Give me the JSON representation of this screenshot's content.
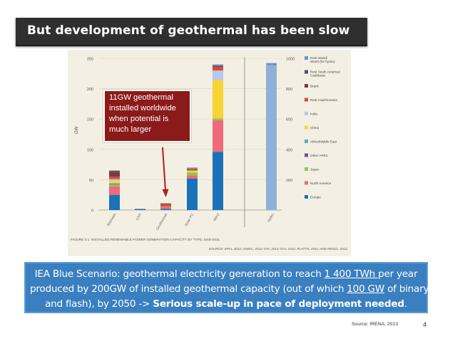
{
  "slide": {
    "title": "But development of geothermal has been slow",
    "callout": [
      "11GW geothermal",
      "installed worldwide",
      "when potential is",
      "much larger"
    ],
    "blue_box": {
      "l1_a": "IEA Blue Scenario: geothermal electricity generation to reach ",
      "l1_b": "1 400 TWh ",
      "l1_c": "per year",
      "l2_a": "produced by 200GW of installed geothermal capacity (out of which ",
      "l2_b": "100 GW",
      "l2_c": " of binary",
      "l3_a": "and flash), by 2050 -> ",
      "l3_b": "Serious scale-up in pace of deployment needed",
      "l3_c": "."
    },
    "source": "Source: IRENA, 2013",
    "page_number": "4"
  },
  "chart_data": {
    "type": "bar",
    "stacked": true,
    "categories": [
      "Biomass",
      "CSP",
      "Geothermal",
      "Solar PV",
      "Wind",
      "Hydro"
    ],
    "ylabel": "GW",
    "ylim_left": [
      0,
      250
    ],
    "yticks_left": [
      "0",
      "50",
      "100",
      "150",
      "200",
      "250"
    ],
    "ylim_right": [
      0,
      1000
    ],
    "yticks_right": [
      "200",
      "400",
      "600",
      "800",
      "1000"
    ],
    "hydro_label": "970 GW",
    "caption": "FIGURE 3.1: INSTALLED RENEWABLE POWER GENERATION CAPACITY BY TYPE, END-2011",
    "source_line": "SOURCE: EPIA, 2012; GWEC, 2012; IHA, 2012; IGA, 2012; PLATTS, 2011; AND REN21, 2012.",
    "legend": [
      {
        "label": "Rest World/ World (for hydro)",
        "color": "#5b9bd5"
      },
      {
        "label": "Rest South America/ Caribbean",
        "color": "#4d5566"
      },
      {
        "label": "Brazil",
        "color": "#7b3b3b"
      },
      {
        "label": "Rest Asia/Oceania",
        "color": "#d94a3a"
      },
      {
        "label": "India",
        "color": "#b7c8e8"
      },
      {
        "label": "China",
        "color": "#f8d432"
      },
      {
        "label": "Africa/Middle East",
        "color": "#4fb3c4"
      },
      {
        "label": "Other APEC",
        "color": "#7d4f9e"
      },
      {
        "label": "Japan",
        "color": "#8cc650"
      },
      {
        "label": "North America",
        "color": "#ef6a7a"
      },
      {
        "label": "Europe",
        "color": "#1a72b9"
      }
    ],
    "series_values": {
      "Biomass": {
        "Europe": 25,
        "North America": 14,
        "Japan": 3,
        "Other APEC": 1,
        "Africa/Middle East": 1,
        "China": 4,
        "India": 3,
        "Rest Asia/Oceania": 4,
        "Brazil": 8,
        "Rest South America/ Caribbean": 2
      },
      "CSP": {
        "Europe": 1.2,
        "North America": 0.6,
        "Rest World/ World (for hydro)": 0.3
      },
      "Geothermal": {
        "Europe": 2,
        "North America": 3.5,
        "Japan": 0.5,
        "Rest Asia/Oceania": 4,
        "Rest South America/ Caribbean": 1
      },
      "Solar PV": {
        "Europe": 52,
        "North America": 5,
        "Japan": 5,
        "China": 3,
        "Rest Asia/Oceania": 3,
        "Rest World/ World (for hydro)": 2
      },
      "Wind": {
        "Europe": 96,
        "North America": 52,
        "Japan": 3,
        "China": 63,
        "India": 16,
        "Rest Asia/Oceania": 6,
        "Brazil": 2,
        "Rest World/ World (for hydro)": 2
      },
      "Hydro_right_axis": {
        "Rest World/ World (for hydro)": 970
      }
    }
  }
}
